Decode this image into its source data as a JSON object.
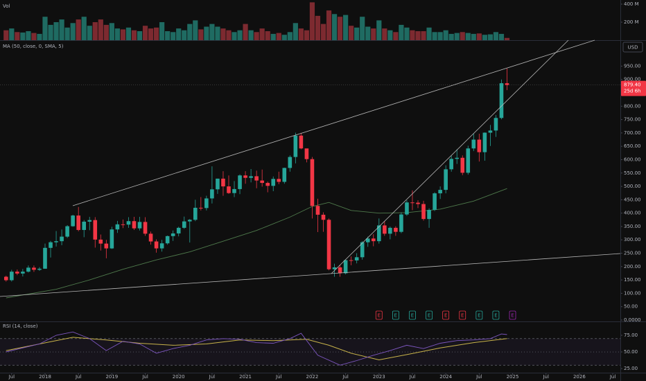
{
  "chart_data": {
    "type": "candlestick",
    "volume_label": "Vol",
    "ma_label": "MA (50, close, 0, SMA, 5)",
    "rsi_label": "RSI (14, close)",
    "currency": "USD",
    "up_color": "#26a69a",
    "down_color": "#f23645",
    "x": [
      "2017-06",
      "2017-07",
      "2017-08",
      "2017-09",
      "2017-10",
      "2017-11",
      "2017-12",
      "2018-01",
      "2018-02",
      "2018-03",
      "2018-04",
      "2018-05",
      "2018-06",
      "2018-07",
      "2018-08",
      "2018-09",
      "2018-10",
      "2018-11",
      "2018-12",
      "2019-01",
      "2019-02",
      "2019-03",
      "2019-04",
      "2019-05",
      "2019-06",
      "2019-07",
      "2019-08",
      "2019-09",
      "2019-10",
      "2019-11",
      "2019-12",
      "2020-01",
      "2020-02",
      "2020-03",
      "2020-04",
      "2020-05",
      "2020-06",
      "2020-07",
      "2020-08",
      "2020-09",
      "2020-10",
      "2020-11",
      "2020-12",
      "2021-01",
      "2021-02",
      "2021-03",
      "2021-04",
      "2021-05",
      "2021-06",
      "2021-07",
      "2021-08",
      "2021-09",
      "2021-10",
      "2021-11",
      "2021-12",
      "2022-01",
      "2022-02",
      "2022-03",
      "2022-04",
      "2022-05",
      "2022-06",
      "2022-07",
      "2022-08",
      "2022-09",
      "2022-10",
      "2022-11",
      "2022-12",
      "2023-01",
      "2023-02",
      "2023-03",
      "2023-04",
      "2023-05",
      "2023-06",
      "2023-07",
      "2023-08",
      "2023-09",
      "2023-10",
      "2023-11",
      "2023-12",
      "2024-01",
      "2024-02",
      "2024-03",
      "2024-04",
      "2024-05",
      "2024-06",
      "2024-07",
      "2024-08",
      "2024-09",
      "2024-10",
      "2024-11",
      "2024-12"
    ],
    "opens": [
      162,
      149,
      181,
      174,
      181,
      196,
      188,
      192,
      270,
      291,
      295,
      312,
      351,
      391,
      337,
      368,
      374,
      301,
      286,
      268,
      339,
      358,
      357,
      370,
      343,
      367,
      323,
      294,
      268,
      287,
      314,
      324,
      345,
      369,
      375,
      420,
      419,
      455,
      489,
      529,
      500,
      475,
      490,
      541,
      532,
      538,
      522,
      513,
      502,
      528,
      517,
      569,
      610,
      690,
      642,
      602,
      427,
      394,
      375,
      190,
      197,
      175,
      224,
      223,
      235,
      291,
      305,
      295,
      354,
      323,
      345,
      330,
      395,
      440,
      439,
      434,
      378,
      412,
      474,
      487,
      564,
      603,
      607,
      551,
      642,
      675,
      628,
      701,
      709,
      756,
      886
    ],
    "highs": [
      166,
      188,
      189,
      191,
      204,
      204,
      198,
      286,
      296,
      333,
      339,
      355,
      394,
      423,
      374,
      386,
      385,
      320,
      300,
      349,
      371,
      376,
      385,
      386,
      386,
      385,
      331,
      302,
      300,
      316,
      335,
      349,
      387,
      378,
      450,
      460,
      465,
      575,
      529,
      557,
      541,
      520,
      545,
      557,
      565,
      559,
      563,
      518,
      537,
      555,
      570,
      616,
      701,
      700,
      637,
      610,
      454,
      403,
      380,
      211,
      207,
      226,
      238,
      250,
      295,
      312,
      321,
      380,
      370,
      350,
      351,
      403,
      448,
      485,
      448,
      446,
      418,
      478,
      500,
      579,
      615,
      639,
      616,
      652,
      697,
      697,
      702,
      730,
      767,
      900,
      941
    ],
    "lows": [
      144,
      144,
      168,
      163,
      178,
      180,
      184,
      192,
      234,
      275,
      280,
      307,
      349,
      332,
      310,
      336,
      271,
      260,
      231,
      266,
      326,
      344,
      345,
      337,
      335,
      315,
      282,
      252,
      256,
      282,
      296,
      313,
      341,
      290,
      370,
      410,
      410,
      436,
      472,
      465,
      472,
      460,
      471,
      510,
      515,
      493,
      499,
      478,
      482,
      508,
      510,
      555,
      586,
      639,
      590,
      380,
      329,
      330,
      186,
      162,
      162,
      171,
      205,
      212,
      226,
      274,
      276,
      286,
      315,
      302,
      315,
      325,
      390,
      411,
      419,
      372,
      345,
      408,
      453,
      474,
      555,
      584,
      542,
      544,
      632,
      593,
      596,
      651,
      685,
      751,
      860
    ],
    "closes": [
      149,
      181,
      174,
      181,
      196,
      188,
      192,
      270,
      291,
      295,
      312,
      351,
      391,
      337,
      368,
      374,
      301,
      286,
      268,
      339,
      358,
      357,
      370,
      343,
      367,
      323,
      294,
      268,
      287,
      314,
      324,
      345,
      369,
      375,
      420,
      419,
      455,
      489,
      529,
      500,
      475,
      490,
      541,
      532,
      538,
      522,
      513,
      502,
      528,
      517,
      569,
      610,
      690,
      642,
      602,
      427,
      394,
      375,
      190,
      197,
      175,
      224,
      223,
      235,
      291,
      305,
      295,
      354,
      323,
      345,
      330,
      395,
      440,
      439,
      434,
      378,
      412,
      474,
      487,
      564,
      603,
      607,
      551,
      642,
      675,
      628,
      701,
      709,
      756,
      886,
      879.4
    ],
    "ylim": [
      0,
      1047
    ],
    "yticks": [
      {
        "value": 950,
        "label": "950.00"
      },
      {
        "value": 900,
        "label": "900.00"
      },
      {
        "value": 800,
        "label": "800.00"
      },
      {
        "value": 750,
        "label": "750.00"
      },
      {
        "value": 700,
        "label": "700.00"
      },
      {
        "value": 650,
        "label": "650.00"
      },
      {
        "value": 600,
        "label": "600.00"
      },
      {
        "value": 550,
        "label": "550.00"
      },
      {
        "value": 500,
        "label": "500.00"
      },
      {
        "value": 450,
        "label": "450.00"
      },
      {
        "value": 400,
        "label": "400.00"
      },
      {
        "value": 350,
        "label": "350.00"
      },
      {
        "value": 300,
        "label": "300.00"
      },
      {
        "value": 250,
        "label": "250.00"
      },
      {
        "value": 200,
        "label": "200.00"
      },
      {
        "value": 150,
        "label": "150.00"
      },
      {
        "value": 100,
        "label": "100.00"
      },
      {
        "value": 50,
        "label": "50.00"
      },
      {
        "value": 0,
        "label": "0.0000"
      }
    ],
    "last_price": {
      "value": 879.4,
      "label": "879.40",
      "countdown": "25d 6h"
    },
    "volume": {
      "up_color": "#1f6b62",
      "down_color": "#7d2a30",
      "ylim": [
        0,
        446
      ],
      "yticks": [
        {
          "value": 400,
          "label": "400 M"
        },
        {
          "value": 200,
          "label": "200 M"
        }
      ],
      "values": [
        110,
        130,
        90,
        85,
        100,
        80,
        70,
        260,
        170,
        200,
        230,
        140,
        190,
        230,
        260,
        160,
        200,
        230,
        170,
        190,
        130,
        120,
        140,
        110,
        100,
        160,
        130,
        140,
        200,
        100,
        90,
        130,
        110,
        180,
        220,
        120,
        150,
        180,
        150,
        130,
        110,
        90,
        110,
        180,
        110,
        90,
        130,
        100,
        70,
        80,
        60,
        90,
        190,
        130,
        110,
        420,
        270,
        180,
        330,
        290,
        260,
        280,
        160,
        140,
        260,
        150,
        130,
        220,
        130,
        110,
        90,
        170,
        140,
        110,
        100,
        100,
        140,
        90,
        90,
        110,
        70,
        80,
        90,
        80,
        70,
        75,
        60,
        65,
        90,
        70,
        25
      ]
    },
    "ma": {
      "color": "#4f7a4c",
      "x": [
        "2017-06",
        "2018-03",
        "2018-09",
        "2019-03",
        "2019-09",
        "2020-03",
        "2020-09",
        "2021-03",
        "2021-09",
        "2022-01",
        "2022-04",
        "2022-08",
        "2023-01",
        "2023-06",
        "2023-12",
        "2024-06",
        "2024-12"
      ],
      "values": [
        83,
        115,
        150,
        190,
        225,
        255,
        295,
        335,
        385,
        425,
        440,
        410,
        400,
        402,
        415,
        445,
        492
      ]
    },
    "rsi": {
      "color": "#7e57c2",
      "ma_color": "#c9b44a",
      "ylim": [
        16.7,
        93.75
      ],
      "yticks": [
        {
          "value": 75,
          "label": "75.00"
        },
        {
          "value": 50,
          "label": "50.00"
        },
        {
          "value": 25,
          "label": "25.00"
        }
      ],
      "bands": [
        70,
        50,
        30
      ],
      "x": [
        "2017-06",
        "2017-12",
        "2018-03",
        "2018-06",
        "2018-09",
        "2018-12",
        "2019-03",
        "2019-06",
        "2019-09",
        "2019-12",
        "2020-03",
        "2020-06",
        "2020-09",
        "2020-12",
        "2021-03",
        "2021-06",
        "2021-09",
        "2021-11",
        "2022-02",
        "2022-06",
        "2022-09",
        "2022-12",
        "2023-03",
        "2023-06",
        "2023-09",
        "2023-12",
        "2024-03",
        "2024-06",
        "2024-09",
        "2024-11",
        "2024-12"
      ],
      "values": [
        50,
        62,
        75,
        80,
        70,
        52,
        66,
        62,
        48,
        55,
        60,
        68,
        70,
        69,
        64,
        63,
        70,
        78,
        45,
        30,
        37,
        45,
        52,
        60,
        55,
        63,
        67,
        68,
        70,
        77,
        76
      ],
      "ma_x": [
        "2017-06",
        "2018-06",
        "2018-12",
        "2019-06",
        "2019-12",
        "2020-06",
        "2020-12",
        "2021-06",
        "2021-12",
        "2022-04",
        "2022-08",
        "2023-01",
        "2023-06",
        "2023-12",
        "2024-06",
        "2024-12"
      ],
      "ma_values": [
        52,
        72,
        68,
        63,
        60,
        62,
        68,
        67,
        69,
        60,
        48,
        38,
        46,
        56,
        64,
        70
      ]
    },
    "earnings": [
      {
        "label": "E",
        "x": "2023-01",
        "color": "#f23645"
      },
      {
        "label": "E",
        "x": "2023-04",
        "color": "#26a69a"
      },
      {
        "label": "E",
        "x": "2023-07",
        "color": "#26a69a"
      },
      {
        "label": "E",
        "x": "2023-10",
        "color": "#26a69a"
      },
      {
        "label": "E",
        "x": "2024-01",
        "color": "#f23645"
      },
      {
        "label": "E",
        "x": "2024-04",
        "color": "#f23645"
      },
      {
        "label": "E",
        "x": "2024-07",
        "color": "#26a69a"
      },
      {
        "label": "E",
        "x": "2024-10",
        "color": "#26a69a"
      },
      {
        "label": "E",
        "x": "2025-01",
        "color": "#9c27b0"
      }
    ],
    "xticks": [
      {
        "value": "2017-07",
        "label": "Jul"
      },
      {
        "value": "2018-01",
        "label": "2018"
      },
      {
        "value": "2018-07",
        "label": "Jul"
      },
      {
        "value": "2019-01",
        "label": "2019"
      },
      {
        "value": "2019-07",
        "label": "Jul"
      },
      {
        "value": "2020-01",
        "label": "2020"
      },
      {
        "value": "2020-07",
        "label": "Jul"
      },
      {
        "value": "2021-01",
        "label": "2021"
      },
      {
        "value": "2021-07",
        "label": "Jul"
      },
      {
        "value": "2022-01",
        "label": "2022"
      },
      {
        "value": "2022-07",
        "label": "Jul"
      },
      {
        "value": "2023-01",
        "label": "2023"
      },
      {
        "value": "2023-07",
        "label": "Jul"
      },
      {
        "value": "2024-01",
        "label": "2024"
      },
      {
        "value": "2024-07",
        "label": "Jul"
      },
      {
        "value": "2025-01",
        "label": "2025"
      },
      {
        "value": "2025-07",
        "label": "Jul"
      },
      {
        "value": "2026-01",
        "label": "2026"
      },
      {
        "value": "2026-07",
        "label": "Jul"
      }
    ]
  }
}
